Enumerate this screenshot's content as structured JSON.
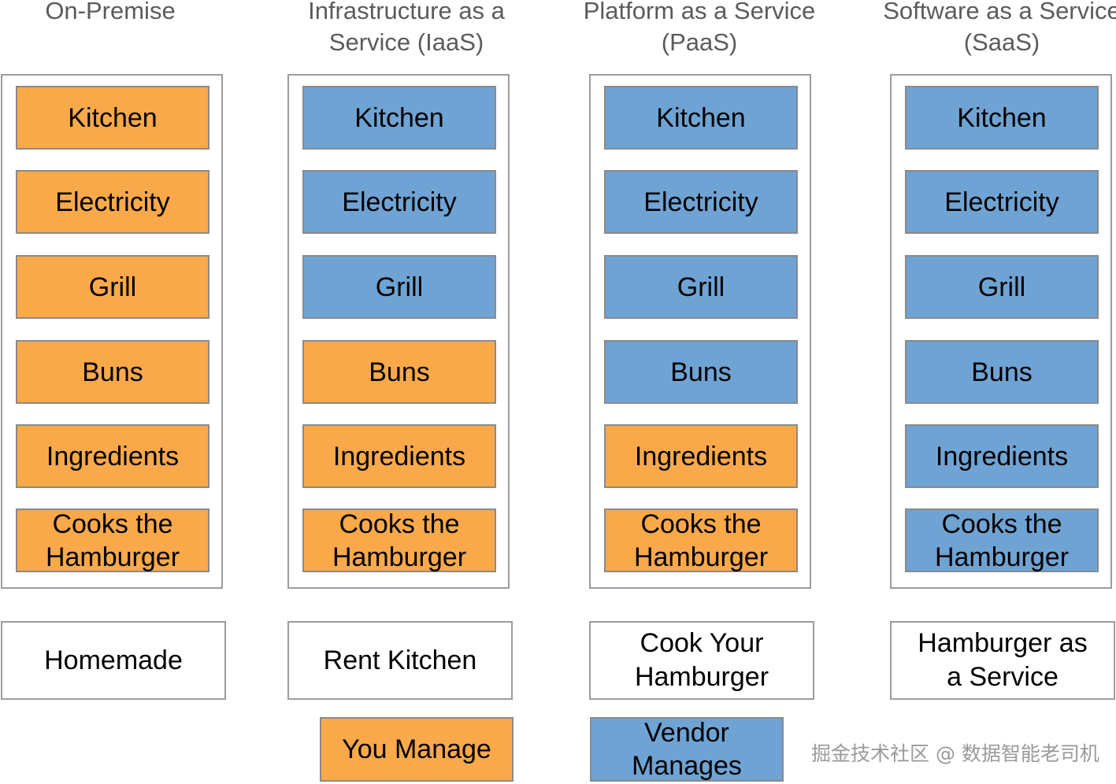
{
  "columns": [
    {
      "title": "On-Premise",
      "layers": [
        {
          "label": "Kitchen",
          "managed_by": "you"
        },
        {
          "label": "Electricity",
          "managed_by": "you"
        },
        {
          "label": "Grill",
          "managed_by": "you"
        },
        {
          "label": "Buns",
          "managed_by": "you"
        },
        {
          "label": "Ingredients",
          "managed_by": "you"
        },
        {
          "label": "Cooks the Hamburger",
          "managed_by": "you"
        }
      ],
      "model": "Homemade"
    },
    {
      "title": "Infrastructure as a Service (IaaS)",
      "layers": [
        {
          "label": "Kitchen",
          "managed_by": "vendor"
        },
        {
          "label": "Electricity",
          "managed_by": "vendor"
        },
        {
          "label": "Grill",
          "managed_by": "vendor"
        },
        {
          "label": "Buns",
          "managed_by": "you"
        },
        {
          "label": "Ingredients",
          "managed_by": "you"
        },
        {
          "label": "Cooks the Hamburger",
          "managed_by": "you"
        }
      ],
      "model": "Rent Kitchen"
    },
    {
      "title": "Platform as a Service (PaaS)",
      "layers": [
        {
          "label": "Kitchen",
          "managed_by": "vendor"
        },
        {
          "label": "Electricity",
          "managed_by": "vendor"
        },
        {
          "label": "Grill",
          "managed_by": "vendor"
        },
        {
          "label": "Buns",
          "managed_by": "vendor"
        },
        {
          "label": "Ingredients",
          "managed_by": "you"
        },
        {
          "label": "Cooks the Hamburger",
          "managed_by": "you"
        }
      ],
      "model": "Cook Your Hamburger"
    },
    {
      "title": "Software as a Service (SaaS)",
      "layers": [
        {
          "label": "Kitchen",
          "managed_by": "vendor"
        },
        {
          "label": "Electricity",
          "managed_by": "vendor"
        },
        {
          "label": "Grill",
          "managed_by": "vendor"
        },
        {
          "label": "Buns",
          "managed_by": "vendor"
        },
        {
          "label": "Ingredients",
          "managed_by": "vendor"
        },
        {
          "label": "Cooks the Hamburger",
          "managed_by": "vendor"
        }
      ],
      "model": "Hamburger as a Service"
    }
  ],
  "legend": {
    "you_manage": "You Manage",
    "vendor_manages": "Vendor Manages"
  },
  "colors": {
    "you": "#f9a94a",
    "vendor": "#6fa3d3"
  },
  "watermark": "掘金技术社区 @ 数据智能老司机"
}
